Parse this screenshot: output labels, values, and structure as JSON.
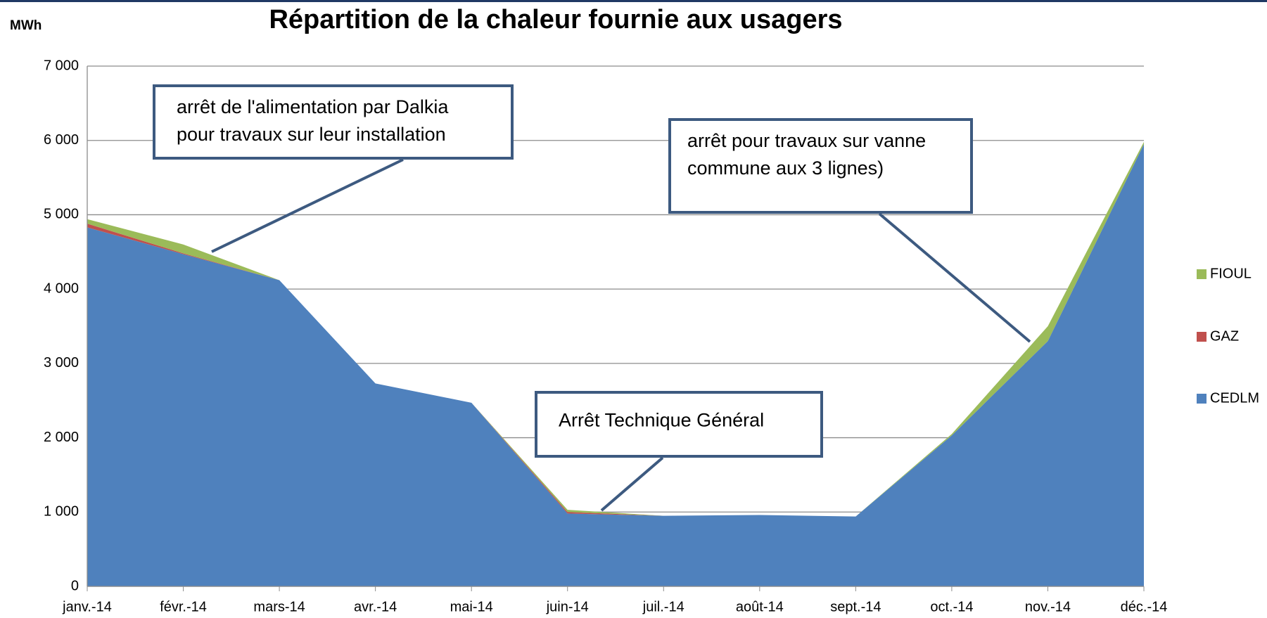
{
  "chart_data": {
    "type": "area",
    "stacked": true,
    "title": "Répartition de la chaleur fournie aux usagers",
    "y_label": "MWh",
    "categories": [
      "janv.-14",
      "févr.-14",
      "mars-14",
      "avr.-14",
      "mai-14",
      "juin-14",
      "juil.-14",
      "août-14",
      "sept.-14",
      "oct.-14",
      "nov.-14",
      "déc.-14"
    ],
    "series": [
      {
        "name": "CEDLM",
        "color": "#4f81bd",
        "values": [
          4830,
          4470,
          4120,
          2730,
          2470,
          980,
          950,
          960,
          940,
          2030,
          3300,
          5950
        ]
      },
      {
        "name": "GAZ",
        "color": "#c0504d",
        "values": [
          50,
          10,
          0,
          0,
          0,
          20,
          0,
          0,
          0,
          0,
          0,
          0
        ]
      },
      {
        "name": "FIOUL",
        "color": "#9bbb59",
        "values": [
          60,
          120,
          0,
          0,
          0,
          30,
          0,
          0,
          0,
          20,
          200,
          30
        ]
      }
    ],
    "ylim": [
      0,
      7000
    ],
    "yticks": [
      0,
      {
        "value": 1000,
        "label": "1 000"
      },
      {
        "value": 2000,
        "label": "2 000"
      },
      {
        "value": 3000,
        "label": "3 000"
      },
      {
        "value": 4000,
        "label": "4 000"
      },
      {
        "value": 5000,
        "label": "5 000"
      },
      {
        "value": 6000,
        "label": "6 000"
      },
      {
        "value": 7000,
        "label": "7 000"
      }
    ],
    "grid": true,
    "legend": "right",
    "annotations": [
      {
        "lines": [
          "arrêt de l'alimentation par Dalkia",
          "pour travaux sur leur installation"
        ]
      },
      {
        "lines": [
          "arrêt pour travaux sur vanne",
          "commune aux 3 lignes)"
        ]
      },
      {
        "lines": [
          "Arrêt Technique Général"
        ]
      }
    ]
  }
}
